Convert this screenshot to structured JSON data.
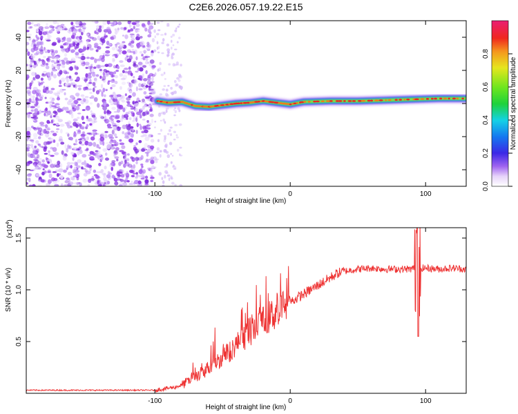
{
  "title": "C2E6.2026.057.19.22.E15",
  "chart_data": [
    {
      "type": "heatmap",
      "xlabel": "Height of straight line (km)",
      "ylabel": "Frequency (Hz)",
      "xlim": [
        -195,
        130
      ],
      "ylim": [
        -50,
        50
      ],
      "xticks": [
        -100,
        0,
        100
      ],
      "yticks": [
        -40,
        -20,
        0,
        20,
        40
      ],
      "colorbar": {
        "label": "Normalized spectral amplitude",
        "range": [
          0,
          1
        ],
        "ticks": [
          "0.0",
          "0.2",
          "0.4",
          "0.6",
          "0.8"
        ],
        "tick_values": [
          0.0,
          0.2,
          0.4,
          0.6,
          0.8
        ]
      },
      "noise_region_x": [
        -195,
        -80
      ],
      "signal_start_x": -100,
      "signal_ridge": {
        "x": [
          -98,
          -90,
          -80,
          -70,
          -60,
          -50,
          -40,
          -30,
          -20,
          -10,
          0,
          10,
          30,
          50,
          70,
          90,
          110,
          130
        ],
        "freq": [
          1.5,
          0.5,
          1.0,
          -1.5,
          -2.0,
          -1.0,
          0.0,
          0.5,
          1.5,
          0.5,
          -0.5,
          1.0,
          1.5,
          1.5,
          2.0,
          2.5,
          3.0,
          3.0
        ]
      }
    },
    {
      "type": "line",
      "xlabel": "Height of straight line (km)",
      "ylabel": "SNR (10 * v/v)",
      "y_scale_label": "(x10",
      "y_scale_exp": "4",
      "xlim": [
        -195,
        130
      ],
      "ylim": [
        0,
        1.6
      ],
      "xticks": [
        -100,
        0,
        100
      ],
      "yticks": [
        0.5,
        1.0,
        1.5
      ],
      "ytick_labels": [
        "0.5",
        "1.0",
        "1.5"
      ],
      "series": [
        {
          "name": "SNR",
          "color": "#ee3333",
          "profile_x": [
            -195,
            -100,
            -95,
            -90,
            -85,
            -80,
            -75,
            -70,
            -65,
            -60,
            -55,
            -50,
            -45,
            -40,
            -35,
            -30,
            -25,
            -20,
            -15,
            -10,
            -5,
            0,
            5,
            10,
            15,
            20,
            25,
            30,
            35,
            40,
            50,
            60,
            70,
            80,
            90,
            92,
            95,
            98,
            100,
            110,
            120,
            130
          ],
          "profile_y": [
            0.03,
            0.03,
            0.04,
            0.05,
            0.06,
            0.08,
            0.12,
            0.16,
            0.2,
            0.25,
            0.3,
            0.35,
            0.4,
            0.47,
            0.53,
            0.58,
            0.64,
            0.69,
            0.74,
            0.79,
            0.84,
            0.88,
            0.92,
            0.96,
            1.0,
            1.04,
            1.08,
            1.12,
            1.16,
            1.18,
            1.2,
            1.21,
            1.2,
            1.2,
            1.2,
            1.22,
            1.2,
            1.21,
            1.21,
            1.2,
            1.21,
            1.2
          ],
          "spike": {
            "x": 94,
            "max": 1.6,
            "min": 0.55
          }
        }
      ]
    }
  ]
}
